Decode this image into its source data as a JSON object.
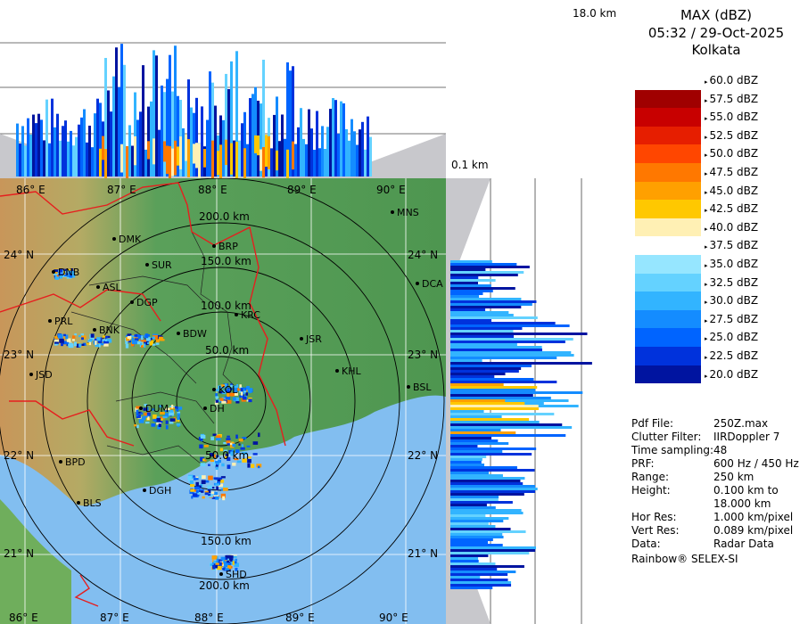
{
  "title": {
    "product": "MAX (dBZ)",
    "datetime": "05:32 / 29-Oct-2025",
    "station": "Kolkata"
  },
  "heights": {
    "top": "18.0 km",
    "bottom": "0.1 km"
  },
  "legend_levels": [
    {
      "label": "60.0 dBZ",
      "color": "#ffffff"
    },
    {
      "label": "57.5 dBZ",
      "color": "#a00000"
    },
    {
      "label": "55.0 dBZ",
      "color": "#c80000"
    },
    {
      "label": "52.5 dBZ",
      "color": "#e61e00"
    },
    {
      "label": "50.0 dBZ",
      "color": "#ff4600"
    },
    {
      "label": "47.5 dBZ",
      "color": "#ff7800"
    },
    {
      "label": "45.0 dBZ",
      "color": "#ffa000"
    },
    {
      "label": "42.5 dBZ",
      "color": "#ffc800"
    },
    {
      "label": "40.0 dBZ",
      "color": "#fff0b4"
    },
    {
      "label": "37.5 dBZ",
      "color": "#ffffff"
    },
    {
      "label": "35.0 dBZ",
      "color": "#96e6ff"
    },
    {
      "label": "32.5 dBZ",
      "color": "#64d2ff"
    },
    {
      "label": "30.0 dBZ",
      "color": "#32b4ff"
    },
    {
      "label": "27.5 dBZ",
      "color": "#148cff"
    },
    {
      "label": "25.0 dBZ",
      "color": "#0064ff"
    },
    {
      "label": "22.5 dBZ",
      "color": "#0032dc"
    },
    {
      "label": "20.0 dBZ",
      "color": "#0014a0"
    }
  ],
  "info": [
    {
      "key": "Pdf File:",
      "value": "250Z.max"
    },
    {
      "key": "Clutter Filter:",
      "value": "IIRDoppler 7"
    },
    {
      "key": "Time sampling:",
      "value": "48"
    },
    {
      "key": "PRF:",
      "value": "600 Hz / 450 Hz"
    },
    {
      "key": "Range:",
      "value": "250 km"
    },
    {
      "key": "Height:",
      "value": "0.100 km to"
    },
    {
      "key": "",
      "value": "18.000 km"
    },
    {
      "key": "Hor Res:",
      "value": "1.000 km/pixel"
    },
    {
      "key": "Vert Res:",
      "value": "0.089 km/pixel"
    },
    {
      "key": "Data:",
      "value": "Radar Data"
    }
  ],
  "credit": "Rainbow® SELEX-SI",
  "map": {
    "lon_labels": [
      "86° E",
      "87° E",
      "88° E",
      "89° E",
      "90° E"
    ],
    "lat_labels": [
      "24° N",
      "23° N",
      "22° N",
      "21° N"
    ],
    "range_labels": [
      "50.0 km",
      "100.0 km",
      "150.0 km",
      "200.0 km"
    ],
    "cities": [
      "MNS",
      "DMK",
      "BRP",
      "DNB",
      "SUR",
      "DCA",
      "ASL",
      "DGP",
      "KRC",
      "PRL",
      "BNK",
      "BDW",
      "JSR",
      "JSD",
      "KHL",
      "BSL",
      "DUM",
      "KOL",
      "DH",
      "BPD",
      "DGH",
      "BLS",
      "SHD"
    ],
    "colors": {
      "land_low": "#5aa05a",
      "land_high": "#c8965a",
      "sea": "#82bef0",
      "border": "#e61e1e"
    }
  }
}
